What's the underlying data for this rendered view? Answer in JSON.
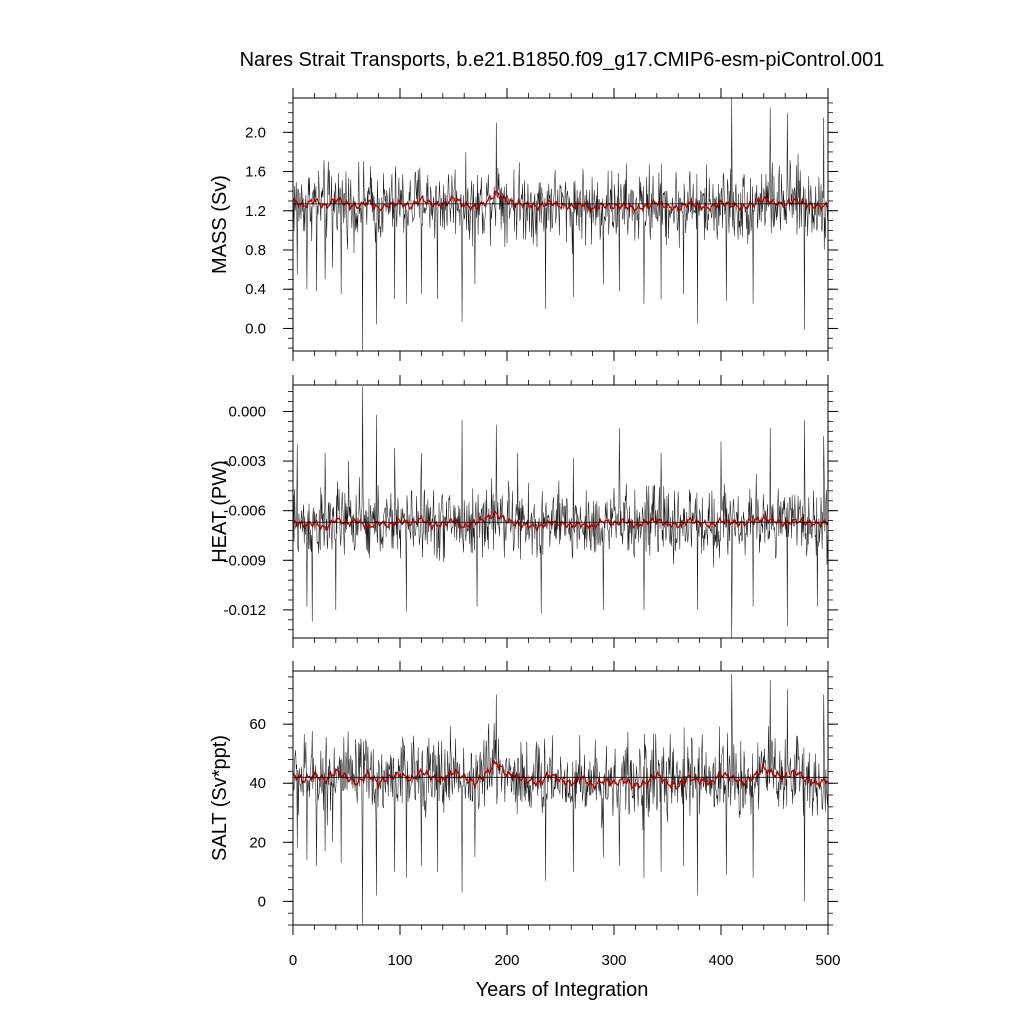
{
  "chart_data": {
    "type": "line",
    "title": "Nares Strait Transports, b.e21.B1850.f09_g17.CMIP6-esm-piControl.001",
    "xlabel": "Years of Integration",
    "xlim": [
      0,
      500
    ],
    "xticks": [
      "0",
      "100",
      "200",
      "300",
      "400",
      "500"
    ],
    "series_colors": {
      "annual": "#000000",
      "smoothed": "#b00000"
    },
    "panels": [
      {
        "id": "mass",
        "ylabel": "MASS (Sv)",
        "ylim": [
          -0.23,
          2.35
        ],
        "yticks": [
          0.0,
          0.4,
          0.8,
          1.2,
          1.6,
          2.0
        ],
        "ytick_labels": [
          "0.0",
          "0.4",
          "0.8",
          "1.2",
          "1.6",
          "2.0"
        ],
        "minor_step": 0.1,
        "mean": 1.27,
        "smooth_mean": [
          1.3,
          1.25,
          1.31,
          1.24,
          1.32,
          1.27,
          1.24,
          1.29,
          1.22,
          1.26,
          1.28,
          1.24,
          1.32,
          1.27,
          1.26,
          1.33,
          1.26,
          1.23,
          1.28,
          1.38,
          1.3,
          1.27,
          1.26,
          1.24,
          1.29,
          1.25,
          1.24,
          1.27,
          1.21,
          1.26,
          1.24,
          1.25,
          1.22,
          1.24,
          1.29,
          1.24,
          1.22,
          1.28,
          1.25,
          1.23,
          1.28,
          1.26,
          1.23,
          1.27,
          1.32,
          1.28,
          1.26,
          1.31,
          1.26,
          1.24,
          1.25
        ],
        "range_hi": [
          1.75,
          1.8,
          1.78,
          1.82,
          1.84,
          1.79,
          1.74,
          1.8,
          1.72,
          1.76,
          1.79,
          1.75,
          1.82,
          1.78,
          1.76,
          1.83,
          1.77,
          1.74,
          1.84,
          1.95,
          1.82,
          1.8,
          1.76,
          1.74,
          1.8,
          1.75,
          1.73,
          1.78,
          1.72,
          1.76,
          1.75,
          1.76,
          1.74,
          1.75,
          1.8,
          1.74,
          1.73,
          1.79,
          1.75,
          1.74,
          1.79,
          1.77,
          1.73,
          1.78,
          1.85,
          1.8,
          1.77,
          1.82,
          1.76,
          1.74,
          1.76
        ],
        "range_lo": [
          0.8,
          0.78,
          0.84,
          0.74,
          0.85,
          0.8,
          0.75,
          0.81,
          0.72,
          0.78,
          0.8,
          0.75,
          0.83,
          0.79,
          0.77,
          0.84,
          0.77,
          0.74,
          0.8,
          0.86,
          0.81,
          0.78,
          0.77,
          0.74,
          0.81,
          0.76,
          0.74,
          0.78,
          0.7,
          0.76,
          0.74,
          0.76,
          0.72,
          0.74,
          0.8,
          0.74,
          0.72,
          0.79,
          0.76,
          0.73,
          0.79,
          0.76,
          0.72,
          0.78,
          0.83,
          0.79,
          0.76,
          0.82,
          0.76,
          0.74,
          0.76
        ],
        "spikes": [
          [
            4,
            0.55
          ],
          [
            13,
            0.4
          ],
          [
            22,
            0.38
          ],
          [
            30,
            0.5
          ],
          [
            37,
            0.62
          ],
          [
            45,
            0.35
          ],
          [
            65,
            -0.23
          ],
          [
            78,
            0.04
          ],
          [
            95,
            0.3
          ],
          [
            106,
            0.25
          ],
          [
            120,
            0.35
          ],
          [
            135,
            0.3
          ],
          [
            158,
            0.07
          ],
          [
            170,
            0.45
          ],
          [
            190,
            2.1
          ],
          [
            236,
            0.2
          ],
          [
            262,
            0.32
          ],
          [
            290,
            0.45
          ],
          [
            305,
            0.38
          ],
          [
            328,
            0.25
          ],
          [
            344,
            0.3
          ],
          [
            365,
            0.35
          ],
          [
            378,
            0.05
          ],
          [
            405,
            0.28
          ],
          [
            410,
            2.35
          ],
          [
            430,
            0.25
          ],
          [
            446,
            2.25
          ],
          [
            462,
            2.2
          ],
          [
            478,
            -0.01
          ],
          [
            496,
            2.15
          ]
        ]
      },
      {
        "id": "heat",
        "ylabel": "HEAT (PW)",
        "ylim": [
          -0.0137,
          0.0016
        ],
        "yticks": [
          0.0,
          -0.003,
          -0.006,
          -0.009,
          -0.012
        ],
        "ytick_labels": [
          "0.000",
          "-0.003",
          "-0.006",
          "-0.009",
          "-0.012"
        ],
        "minor_step": 0.0006,
        "mean": -0.0067,
        "smooth_mean": [
          -0.0066,
          -0.0069,
          -0.0067,
          -0.0071,
          -0.0065,
          -0.0068,
          -0.0066,
          -0.007,
          -0.0067,
          -0.0069,
          -0.0066,
          -0.0068,
          -0.0065,
          -0.0069,
          -0.0068,
          -0.0066,
          -0.007,
          -0.0067,
          -0.0065,
          -0.0062,
          -0.0066,
          -0.0068,
          -0.0069,
          -0.007,
          -0.0067,
          -0.0068,
          -0.0069,
          -0.0068,
          -0.007,
          -0.0066,
          -0.0068,
          -0.0066,
          -0.0069,
          -0.0067,
          -0.0066,
          -0.0068,
          -0.0069,
          -0.0066,
          -0.0067,
          -0.0069,
          -0.0066,
          -0.0067,
          -0.0068,
          -0.0066,
          -0.0065,
          -0.0066,
          -0.0068,
          -0.0066,
          -0.0067,
          -0.0068,
          -0.0067
        ],
        "range_hi": [
          -0.0038,
          -0.004,
          -0.0037,
          -0.0041,
          -0.0036,
          -0.0039,
          -0.0038,
          -0.0041,
          -0.0038,
          -0.004,
          -0.0037,
          -0.0039,
          -0.0036,
          -0.004,
          -0.0039,
          -0.0037,
          -0.0041,
          -0.0038,
          -0.0036,
          -0.0032,
          -0.0037,
          -0.0039,
          -0.004,
          -0.0041,
          -0.0038,
          -0.0039,
          -0.004,
          -0.0039,
          -0.0041,
          -0.0037,
          -0.0039,
          -0.0037,
          -0.004,
          -0.0038,
          -0.0037,
          -0.0039,
          -0.004,
          -0.0037,
          -0.0038,
          -0.004,
          -0.0037,
          -0.0038,
          -0.0039,
          -0.0037,
          -0.0034,
          -0.0037,
          -0.0039,
          -0.0037,
          -0.0038,
          -0.0039,
          -0.0038
        ],
        "range_lo": [
          -0.0094,
          -0.0098,
          -0.0095,
          -0.01,
          -0.0093,
          -0.0097,
          -0.0094,
          -0.0099,
          -0.0096,
          -0.0098,
          -0.0094,
          -0.0097,
          -0.0093,
          -0.0098,
          -0.0097,
          -0.0094,
          -0.0099,
          -0.0096,
          -0.0094,
          -0.0093,
          -0.0095,
          -0.0097,
          -0.0098,
          -0.0099,
          -0.0096,
          -0.0097,
          -0.0098,
          -0.0097,
          -0.01,
          -0.0095,
          -0.0097,
          -0.0095,
          -0.0098,
          -0.0096,
          -0.0095,
          -0.0097,
          -0.0098,
          -0.0095,
          -0.0096,
          -0.0098,
          -0.0095,
          -0.0096,
          -0.0097,
          -0.0095,
          -0.0094,
          -0.0095,
          -0.0097,
          -0.0095,
          -0.0096,
          -0.0097,
          -0.0096
        ],
        "spikes": [
          [
            4,
            -0.002
          ],
          [
            13,
            -0.0118
          ],
          [
            18,
            -0.0127
          ],
          [
            30,
            -0.0025
          ],
          [
            40,
            -0.012
          ],
          [
            52,
            -0.003
          ],
          [
            65,
            0.0015
          ],
          [
            78,
            -0.0002
          ],
          [
            95,
            -0.0022
          ],
          [
            106,
            -0.0121
          ],
          [
            120,
            -0.0025
          ],
          [
            158,
            -0.0005
          ],
          [
            172,
            -0.0118
          ],
          [
            190,
            -0.0008
          ],
          [
            210,
            -0.0025
          ],
          [
            232,
            -0.0122
          ],
          [
            262,
            -0.0028
          ],
          [
            290,
            -0.012
          ],
          [
            305,
            -0.001
          ],
          [
            328,
            -0.012
          ],
          [
            344,
            -0.0025
          ],
          [
            378,
            -0.012
          ],
          [
            400,
            -0.0018
          ],
          [
            410,
            -0.0137
          ],
          [
            430,
            -0.0118
          ],
          [
            446,
            -0.001
          ],
          [
            462,
            -0.013
          ],
          [
            478,
            -0.0005
          ],
          [
            490,
            -0.0118
          ],
          [
            496,
            -0.0015
          ]
        ]
      },
      {
        "id": "salt",
        "ylabel": "SALT (Sv*ppt)",
        "ylim": [
          -8,
          78
        ],
        "yticks": [
          0,
          20,
          40,
          60
        ],
        "ytick_labels": [
          "0",
          "20",
          "40",
          "60"
        ],
        "minor_step": 4,
        "mean": 42,
        "smooth_mean": [
          43,
          41,
          43,
          41,
          44,
          42,
          40,
          43,
          40,
          42,
          43,
          41,
          44,
          42,
          41,
          44,
          42,
          40,
          43,
          47,
          43,
          42,
          41,
          40,
          43,
          41,
          40,
          42,
          39,
          41,
          40,
          41,
          39,
          40,
          43,
          40,
          39,
          42,
          41,
          40,
          43,
          42,
          40,
          42,
          45,
          43,
          42,
          44,
          41,
          40,
          41
        ],
        "range_hi": [
          60,
          62,
          61,
          63,
          64,
          61,
          59,
          62,
          58,
          60,
          62,
          60,
          63,
          61,
          60,
          64,
          61,
          59,
          64,
          68,
          63,
          62,
          60,
          59,
          62,
          60,
          59,
          61,
          58,
          60,
          60,
          61,
          59,
          60,
          62,
          59,
          59,
          62,
          60,
          59,
          62,
          61,
          59,
          61,
          65,
          62,
          61,
          63,
          60,
          59,
          60
        ],
        "range_lo": [
          26,
          25,
          27,
          24,
          28,
          26,
          24,
          27,
          23,
          25,
          26,
          24,
          27,
          26,
          25,
          28,
          25,
          24,
          26,
          29,
          27,
          25,
          25,
          24,
          27,
          25,
          24,
          26,
          22,
          25,
          24,
          25,
          23,
          24,
          27,
          24,
          23,
          26,
          25,
          24,
          26,
          25,
          23,
          25,
          27,
          26,
          25,
          27,
          25,
          24,
          25
        ],
        "spikes": [
          [
            4,
            18
          ],
          [
            13,
            14
          ],
          [
            22,
            12
          ],
          [
            30,
            17
          ],
          [
            37,
            20
          ],
          [
            45,
            13
          ],
          [
            65,
            -8
          ],
          [
            78,
            2
          ],
          [
            95,
            10
          ],
          [
            106,
            8
          ],
          [
            120,
            12
          ],
          [
            135,
            10
          ],
          [
            158,
            3
          ],
          [
            170,
            15
          ],
          [
            190,
            70
          ],
          [
            236,
            7
          ],
          [
            262,
            10
          ],
          [
            290,
            15
          ],
          [
            305,
            12
          ],
          [
            328,
            8
          ],
          [
            344,
            10
          ],
          [
            365,
            12
          ],
          [
            378,
            2
          ],
          [
            405,
            9
          ],
          [
            410,
            77
          ],
          [
            430,
            8
          ],
          [
            446,
            75
          ],
          [
            462,
            72
          ],
          [
            478,
            0
          ],
          [
            496,
            70
          ]
        ]
      }
    ]
  }
}
